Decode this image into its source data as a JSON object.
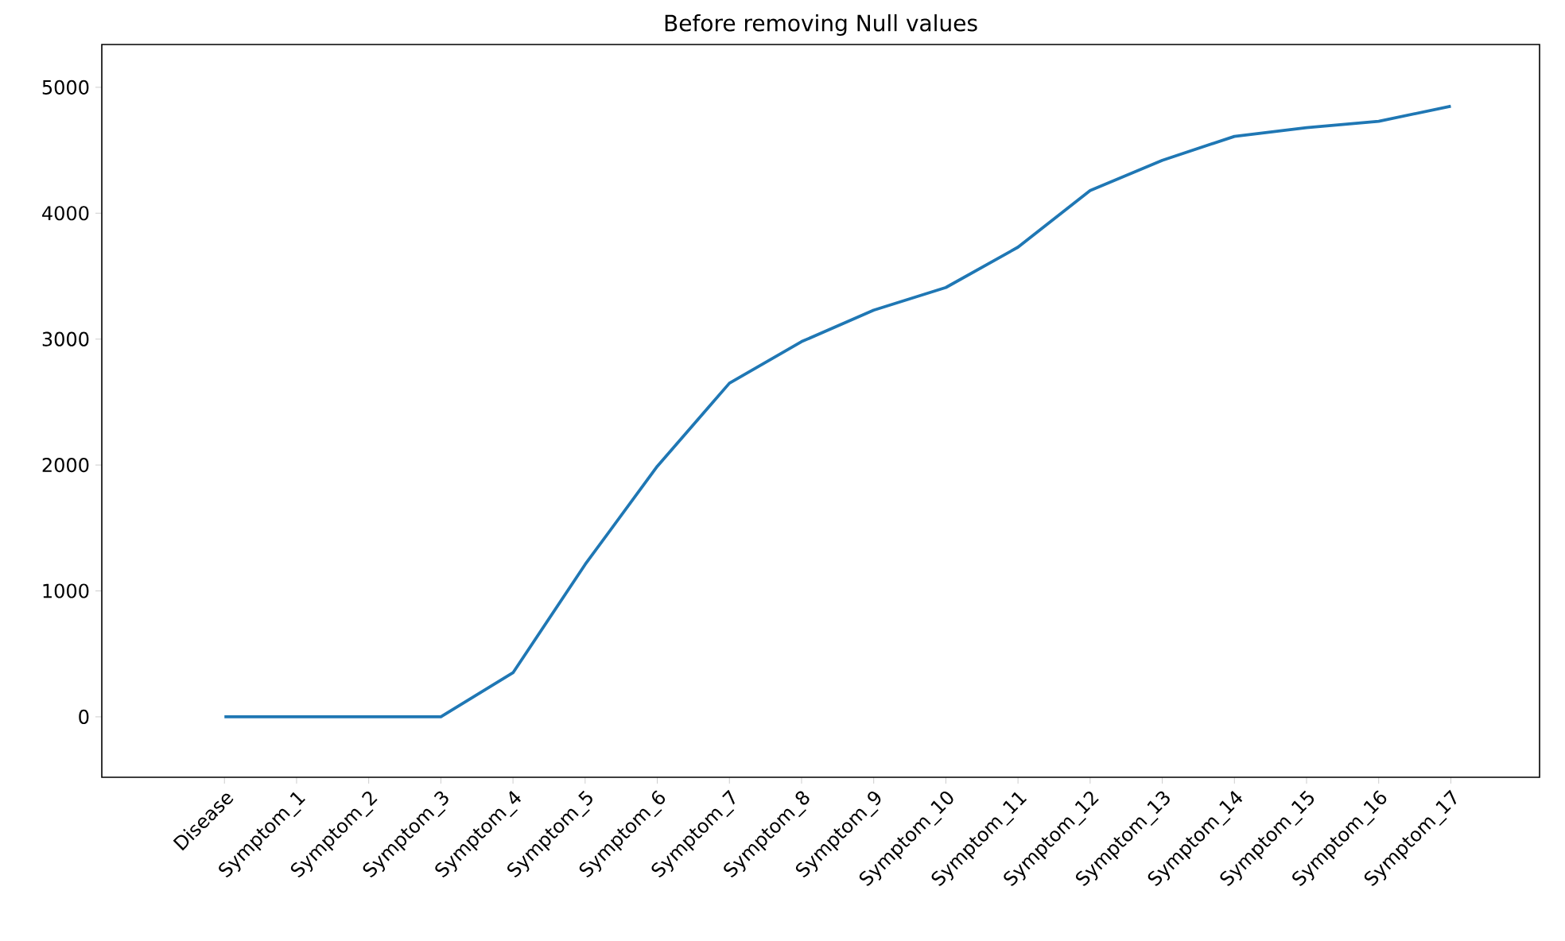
{
  "chart_data": {
    "type": "line",
    "title": "Before removing Null values",
    "categories": [
      "Disease",
      "Symptom_1",
      "Symptom_2",
      "Symptom_3",
      "Symptom_4",
      "Symptom_5",
      "Symptom_6",
      "Symptom_7",
      "Symptom_8",
      "Symptom_9",
      "Symptom_10",
      "Symptom_11",
      "Symptom_12",
      "Symptom_13",
      "Symptom_14",
      "Symptom_15",
      "Symptom_16",
      "Symptom_17"
    ],
    "values": [
      0,
      0,
      0,
      0,
      350,
      1210,
      1990,
      2650,
      2980,
      3230,
      3410,
      3730,
      4180,
      4420,
      4610,
      4680,
      4730,
      4850
    ],
    "color": "#1f77b4",
    "ylim": [
      -480,
      5340
    ],
    "yticks": [
      0,
      1000,
      2000,
      3000,
      4000,
      5000
    ]
  }
}
